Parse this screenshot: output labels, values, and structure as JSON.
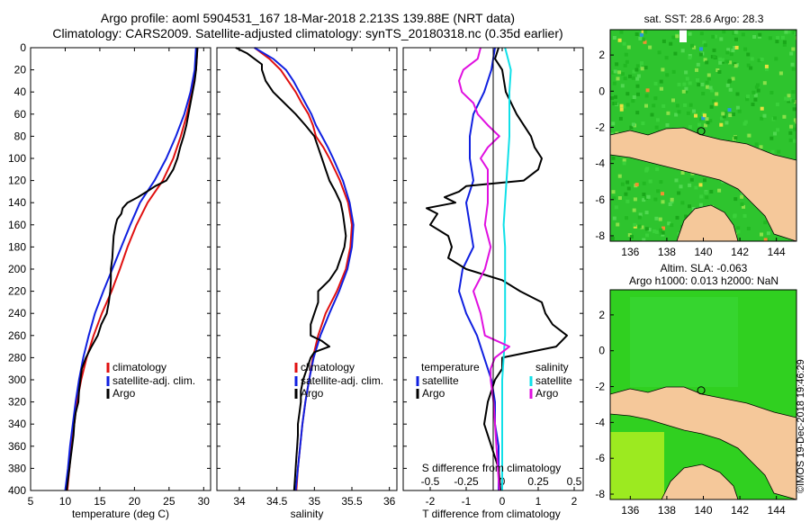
{
  "title": {
    "line1": "Argo profile: aoml 5904531_167 18-Mar-2018 2.213S 139.88E (NRT data)",
    "line2": "Climatology: CARS2009. Satellite-adjusted climatology: synTS_20180318.nc (0.35d earlier)"
  },
  "colors": {
    "climatology": "#e01010",
    "satellite": "#1020e0",
    "argo": "#000000",
    "sal_satellite": "#10e0e8",
    "sal_argo": "#e010e0",
    "land": "#f5c89a",
    "sea_sst": "#2ec42e",
    "sea_sla": "#30d020"
  },
  "depth_ticks": [
    "0",
    "20",
    "40",
    "60",
    "80",
    "100",
    "120",
    "140",
    "160",
    "180",
    "200",
    "220",
    "240",
    "260",
    "280",
    "300",
    "320",
    "340",
    "360",
    "380",
    "400"
  ],
  "chart_data": [
    {
      "type": "line",
      "name": "temperature",
      "xlabel": "temperature (deg C)",
      "xlim": [
        5,
        31
      ],
      "ylim": [
        0,
        400
      ],
      "xticks": [
        "5",
        "10",
        "15",
        "20",
        "25",
        "30"
      ],
      "xtick_values": [
        5,
        10,
        15,
        20,
        25,
        30
      ],
      "legend": {
        "placement": "lower-right",
        "climatology": "climatology",
        "satellite": "satellite-adj. clim.",
        "argo": "Argo"
      },
      "series": [
        {
          "name": "climatology",
          "depth": [
            0,
            20,
            40,
            60,
            80,
            100,
            120,
            140,
            160,
            180,
            200,
            220,
            240,
            260,
            280,
            300,
            320,
            340,
            360,
            380,
            400
          ],
          "values": [
            29.1,
            28.9,
            28.3,
            27.6,
            26.7,
            25.6,
            24.1,
            21.9,
            20.3,
            19.0,
            17.9,
            16.7,
            15.3,
            14.1,
            13.1,
            12.3,
            11.7,
            11.3,
            10.9,
            10.6,
            10.3
          ]
        },
        {
          "name": "satellite-adj. clim.",
          "depth": [
            0,
            20,
            40,
            60,
            80,
            100,
            120,
            140,
            160,
            180,
            200,
            220,
            240,
            260,
            280,
            300,
            320,
            340,
            360,
            380,
            400
          ],
          "values": [
            28.9,
            28.7,
            28.1,
            27.2,
            26.0,
            24.6,
            22.9,
            20.8,
            19.4,
            18.1,
            16.8,
            15.5,
            14.3,
            13.4,
            12.6,
            12.0,
            11.5,
            11.1,
            10.7,
            10.4,
            10.0
          ]
        },
        {
          "name": "Argo",
          "depth": [
            0,
            10,
            20,
            30,
            40,
            50,
            60,
            70,
            80,
            90,
            100,
            110,
            120,
            125,
            130,
            135,
            140,
            145,
            150,
            155,
            160,
            170,
            180,
            190,
            200,
            210,
            220,
            230,
            240,
            250,
            260,
            270,
            280,
            290,
            300,
            310,
            320,
            330,
            340,
            350,
            360,
            370,
            380,
            390,
            400
          ],
          "values": [
            29.1,
            29.0,
            28.9,
            28.7,
            28.4,
            28.1,
            27.8,
            27.5,
            27.1,
            26.6,
            26.2,
            25.6,
            24.6,
            23.0,
            21.8,
            20.5,
            19.0,
            18.3,
            18.1,
            17.5,
            17.3,
            17.0,
            16.9,
            16.8,
            16.6,
            16.6,
            16.5,
            16.3,
            16.0,
            15.2,
            14.7,
            13.8,
            13.0,
            12.4,
            12.2,
            12.0,
            11.9,
            11.5,
            11.3,
            11.2,
            11.0,
            10.8,
            10.6,
            10.4,
            10.2
          ]
        }
      ]
    },
    {
      "type": "line",
      "name": "salinity",
      "xlabel": "salinity",
      "xlim": [
        33.7,
        36.1
      ],
      "ylim": [
        0,
        400
      ],
      "xticks": [
        "34",
        "34.5",
        "35",
        "35.5",
        "36"
      ],
      "xtick_values": [
        34,
        34.5,
        35,
        35.5,
        36
      ],
      "legend": {
        "placement": "lower-right",
        "climatology": "climatology",
        "satellite": "satellite-adj. clim.",
        "argo": "Argo"
      },
      "series": [
        {
          "name": "climatology",
          "depth": [
            0,
            10,
            20,
            30,
            40,
            50,
            60,
            70,
            80,
            90,
            100,
            120,
            140,
            160,
            180,
            200,
            220,
            240,
            260,
            280,
            300,
            320,
            340,
            360,
            380,
            400
          ],
          "values": [
            34.2,
            34.4,
            34.55,
            34.65,
            34.75,
            34.83,
            34.92,
            34.98,
            35.02,
            35.12,
            35.2,
            35.34,
            35.45,
            35.5,
            35.48,
            35.42,
            35.3,
            35.15,
            35.05,
            34.98,
            34.93,
            34.88,
            34.84,
            34.81,
            34.78,
            34.76
          ]
        },
        {
          "name": "satellite-adj. clim.",
          "depth": [
            0,
            10,
            20,
            30,
            40,
            50,
            60,
            70,
            80,
            90,
            100,
            120,
            140,
            160,
            180,
            200,
            220,
            240,
            260,
            280,
            300,
            320,
            340,
            360,
            380,
            400
          ],
          "values": [
            34.2,
            34.45,
            34.62,
            34.72,
            34.8,
            34.88,
            34.96,
            35.02,
            35.1,
            35.18,
            35.25,
            35.38,
            35.47,
            35.52,
            35.5,
            35.44,
            35.33,
            35.2,
            35.08,
            34.99,
            34.93,
            34.88,
            34.84,
            34.81,
            34.78,
            34.75
          ]
        },
        {
          "name": "Argo",
          "depth": [
            0,
            5,
            10,
            15,
            20,
            30,
            40,
            50,
            60,
            70,
            80,
            90,
            100,
            110,
            120,
            130,
            140,
            150,
            160,
            170,
            180,
            190,
            200,
            210,
            220,
            230,
            240,
            250,
            260,
            265,
            270,
            275,
            280,
            290,
            300,
            310,
            320,
            330,
            340,
            350,
            360,
            370,
            380,
            390,
            400
          ],
          "values": [
            33.95,
            34.1,
            34.2,
            34.3,
            34.3,
            34.35,
            34.45,
            34.6,
            34.75,
            34.88,
            35.0,
            35.05,
            35.1,
            35.15,
            35.2,
            35.28,
            35.35,
            35.38,
            35.4,
            35.42,
            35.4,
            35.35,
            35.3,
            35.2,
            35.05,
            35.05,
            35.0,
            34.95,
            34.95,
            35.1,
            35.2,
            35.0,
            34.95,
            34.9,
            34.85,
            34.82,
            34.82,
            34.8,
            34.78,
            34.78,
            34.77,
            34.76,
            34.75,
            34.74,
            34.73
          ]
        }
      ]
    },
    {
      "type": "line",
      "name": "difference",
      "xlabel": "T difference from climatology",
      "xlabel_top": "S difference from climatology",
      "xlim": [
        -2.75,
        2.25
      ],
      "ylim": [
        0,
        400
      ],
      "xticks": [
        "-2",
        "-1",
        "0",
        "1",
        "2"
      ],
      "xtick_values": [
        -2,
        -1,
        0,
        1,
        2
      ],
      "sticks": [
        "-0.5",
        "-0.25",
        "0",
        "0.25",
        "0.5"
      ],
      "stick_values": [
        -0.5,
        -0.25,
        0,
        0.25,
        0.5
      ],
      "s_scale": 4,
      "legend": {
        "placement": "lower",
        "temperature": "temperature",
        "salinity": "salinity",
        "satellite": "satellite",
        "argo": "Argo"
      },
      "series": [
        {
          "name": "T satellite",
          "depth": [
            0,
            10,
            20,
            40,
            60,
            80,
            100,
            120,
            140,
            160,
            180,
            200,
            220,
            240,
            260,
            280,
            300,
            320,
            340,
            360,
            380,
            400
          ],
          "values": [
            -0.2,
            -0.25,
            -0.3,
            -0.5,
            -0.8,
            -0.9,
            -0.9,
            -0.8,
            -1.0,
            -0.9,
            -0.8,
            -1.1,
            -1.2,
            -1.0,
            -0.7,
            -0.5,
            -0.3,
            -0.2,
            -0.2,
            -0.1,
            -0.1,
            -0.1
          ]
        },
        {
          "name": "T Argo",
          "depth": [
            0,
            10,
            20,
            40,
            60,
            80,
            90,
            100,
            110,
            120,
            125,
            130,
            135,
            140,
            145,
            150,
            160,
            170,
            180,
            190,
            200,
            210,
            220,
            230,
            240,
            250,
            260,
            270,
            280,
            290,
            300,
            320,
            340,
            360,
            380,
            400
          ],
          "values": [
            -0.1,
            -0.2,
            0.0,
            0.1,
            0.4,
            0.8,
            0.9,
            1.1,
            1.0,
            0.6,
            -1.0,
            -1.2,
            -1.6,
            -1.3,
            -2.1,
            -1.8,
            -2.0,
            -1.5,
            -1.4,
            -1.5,
            -1.0,
            0.0,
            0.5,
            1.1,
            1.2,
            1.4,
            1.8,
            1.5,
            0.0,
            0.0,
            -0.2,
            -0.4,
            -0.5,
            -0.3,
            -0.1,
            -0.05
          ]
        },
        {
          "name": "S satellite",
          "depth": [
            0,
            10,
            20,
            40,
            60,
            80,
            100,
            120,
            140,
            160,
            180,
            200,
            220,
            240,
            260,
            280,
            300,
            320,
            340,
            360,
            380,
            400
          ],
          "values": [
            0.02,
            0.04,
            0.06,
            0.05,
            0.05,
            0.05,
            0.04,
            0.03,
            0.02,
            0.01,
            0.02,
            0.02,
            0.02,
            0.02,
            0.02,
            0.01,
            0.0,
            0.0,
            0.0,
            0.0,
            0.0,
            0.0
          ]
        },
        {
          "name": "S Argo",
          "depth": [
            0,
            10,
            20,
            30,
            40,
            50,
            60,
            70,
            80,
            90,
            100,
            110,
            120,
            140,
            160,
            180,
            200,
            220,
            240,
            260,
            270,
            280,
            290,
            300,
            320,
            340,
            360,
            380,
            400
          ],
          "values": [
            -0.15,
            -0.17,
            -0.27,
            -0.3,
            -0.28,
            -0.2,
            -0.17,
            -0.1,
            -0.02,
            -0.1,
            -0.15,
            -0.1,
            -0.1,
            -0.1,
            -0.12,
            -0.08,
            -0.12,
            -0.2,
            -0.15,
            -0.12,
            0.05,
            -0.05,
            -0.08,
            -0.08,
            -0.06,
            -0.05,
            -0.04,
            -0.03,
            -0.02
          ]
        }
      ]
    },
    {
      "type": "heatmap",
      "name": "sst-map",
      "title": "sat. SST: 28.6 Argo: 28.3",
      "xticks": [
        "136",
        "138",
        "140",
        "142",
        "144"
      ],
      "xtick_values": [
        136,
        138,
        140,
        142,
        144
      ],
      "yticks": [
        "2",
        "0",
        "-2",
        "-4",
        "-6",
        "-8"
      ],
      "ytick_values": [
        2,
        0,
        -2,
        -4,
        -6,
        -8
      ],
      "xlim": [
        134.9,
        145.1
      ],
      "ylim": [
        -8.3,
        3.4
      ],
      "argo_lon": 139.88,
      "argo_lat": -2.213
    },
    {
      "type": "heatmap",
      "name": "sla-map",
      "title_line1": "Altim. SLA: -0.063",
      "title_line2": "Argo h1000: 0.013 h2000: NaN",
      "xticks": [
        "136",
        "138",
        "140",
        "142",
        "144"
      ],
      "xtick_values": [
        136,
        138,
        140,
        142,
        144
      ],
      "yticks": [
        "2",
        "0",
        "-2",
        "-4",
        "-6",
        "-8"
      ],
      "ytick_values": [
        2,
        0,
        -2,
        -4,
        -6,
        -8
      ],
      "xlim": [
        134.9,
        145.1
      ],
      "ylim": [
        -8.3,
        3.4
      ],
      "argo_lon": 139.88,
      "argo_lat": -2.213
    }
  ],
  "footer": "©IMOS 19-Dec-2018 19:46:29"
}
